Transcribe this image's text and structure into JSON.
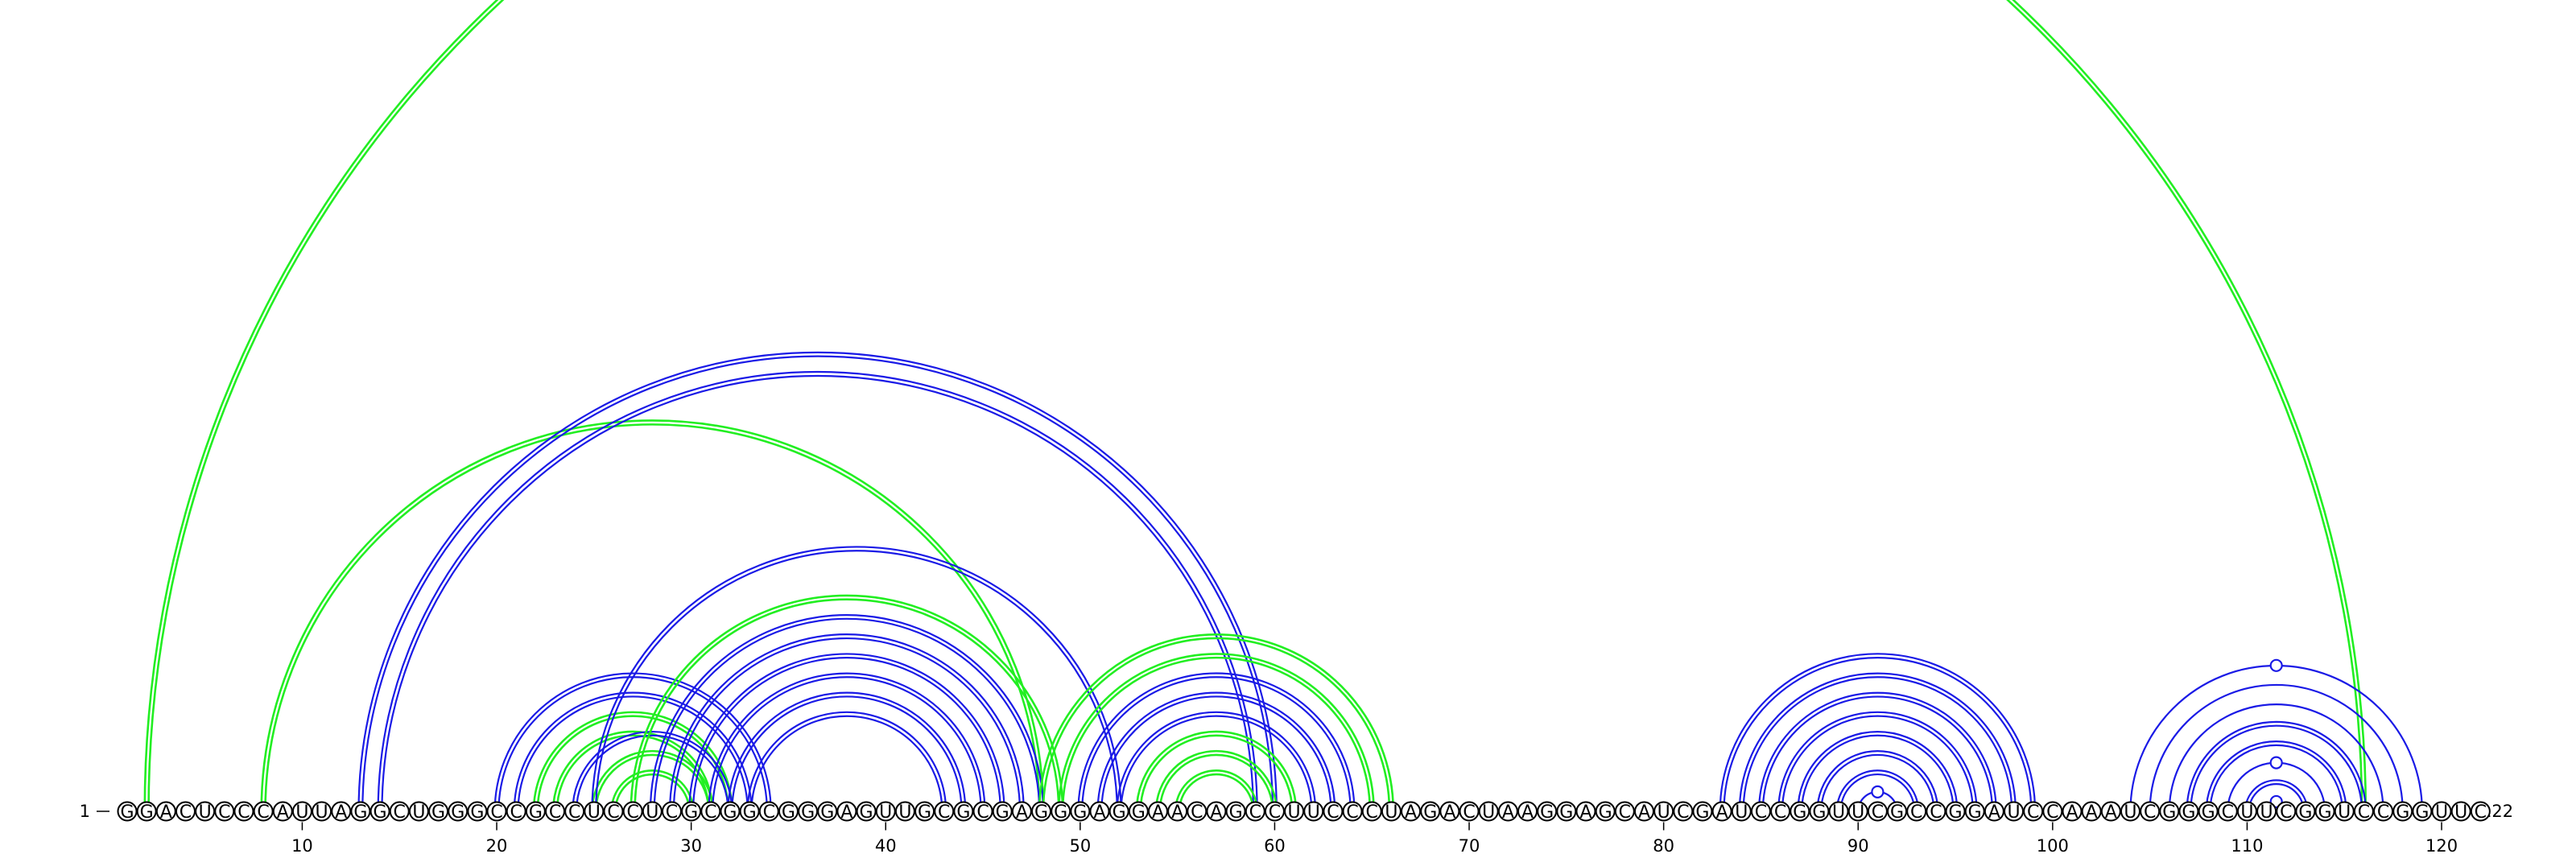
{
  "sequence": "GGACUCCCAUUAGGCUGGGCCGCCUCCUCGCGGCGGGAGUUGCGCGAGGGAGGAACAGCCUUCCCUAGACUAAGGAGCAUCGAUCCGGUUCGCCGGAUCCAAAUCGGGCUUCGGUCCGGUUC",
  "start_label": "1",
  "end_label": "122",
  "ticks": [
    {
      "pos": 10,
      "label": "10"
    },
    {
      "pos": 20,
      "label": "20"
    },
    {
      "pos": 30,
      "label": "30"
    },
    {
      "pos": 40,
      "label": "40"
    },
    {
      "pos": 50,
      "label": "50"
    },
    {
      "pos": 60,
      "label": "60"
    },
    {
      "pos": 70,
      "label": "70"
    },
    {
      "pos": 80,
      "label": "80"
    },
    {
      "pos": 90,
      "label": "90"
    },
    {
      "pos": 100,
      "label": "100"
    },
    {
      "pos": 110,
      "label": "110"
    },
    {
      "pos": 120,
      "label": "120"
    }
  ],
  "colors": {
    "blue": "#1a1ae6",
    "green": "#22ee22"
  },
  "arcs": [
    {
      "i": 2,
      "j": 116,
      "color": "green",
      "lines": 2
    },
    {
      "i": 8,
      "j": 48,
      "color": "green",
      "lines": 2
    },
    {
      "i": 13,
      "j": 60,
      "color": "blue",
      "lines": 2
    },
    {
      "i": 14,
      "j": 59,
      "color": "blue",
      "lines": 2
    },
    {
      "i": 20,
      "j": 34,
      "color": "blue",
      "lines": 2
    },
    {
      "i": 21,
      "j": 33,
      "color": "blue",
      "lines": 2
    },
    {
      "i": 22,
      "j": 32,
      "color": "green",
      "lines": 2
    },
    {
      "i": 23,
      "j": 31,
      "color": "green",
      "lines": 2
    },
    {
      "i": 24,
      "j": 32,
      "color": "blue",
      "lines": 2
    },
    {
      "i": 25,
      "j": 31,
      "color": "green",
      "lines": 2
    },
    {
      "i": 25,
      "j": 52,
      "color": "blue",
      "lines": 2
    },
    {
      "i": 26,
      "j": 30,
      "color": "green",
      "lines": 2
    },
    {
      "i": 27,
      "j": 49,
      "color": "green",
      "lines": 2
    },
    {
      "i": 28,
      "j": 48,
      "color": "blue",
      "lines": 2
    },
    {
      "i": 29,
      "j": 47,
      "color": "blue",
      "lines": 2
    },
    {
      "i": 30,
      "j": 46,
      "color": "blue",
      "lines": 2
    },
    {
      "i": 31,
      "j": 45,
      "color": "blue",
      "lines": 2
    },
    {
      "i": 32,
      "j": 44,
      "color": "blue",
      "lines": 2
    },
    {
      "i": 33,
      "j": 43,
      "color": "blue",
      "lines": 2
    },
    {
      "i": 48,
      "j": 66,
      "color": "green",
      "lines": 2
    },
    {
      "i": 49,
      "j": 65,
      "color": "green",
      "lines": 2
    },
    {
      "i": 50,
      "j": 64,
      "color": "blue",
      "lines": 2
    },
    {
      "i": 51,
      "j": 63,
      "color": "blue",
      "lines": 2
    },
    {
      "i": 52,
      "j": 62,
      "color": "blue",
      "lines": 2
    },
    {
      "i": 53,
      "j": 61,
      "color": "green",
      "lines": 2
    },
    {
      "i": 54,
      "j": 60,
      "color": "green",
      "lines": 2
    },
    {
      "i": 55,
      "j": 59,
      "color": "green",
      "lines": 2
    },
    {
      "i": 83,
      "j": 99,
      "color": "blue",
      "lines": 2
    },
    {
      "i": 84,
      "j": 98,
      "color": "blue",
      "lines": 2
    },
    {
      "i": 85,
      "j": 97,
      "color": "blue",
      "lines": 2
    },
    {
      "i": 86,
      "j": 96,
      "color": "blue",
      "lines": 2
    },
    {
      "i": 87,
      "j": 95,
      "color": "blue",
      "lines": 2
    },
    {
      "i": 88,
      "j": 94,
      "color": "blue",
      "lines": 2
    },
    {
      "i": 89,
      "j": 93,
      "color": "blue",
      "lines": 2
    },
    {
      "i": 90,
      "j": 92,
      "color": "blue",
      "lines": 1,
      "loop": true
    },
    {
      "i": 104,
      "j": 119,
      "color": "blue",
      "lines": 1,
      "loop": true
    },
    {
      "i": 105,
      "j": 118,
      "color": "blue",
      "lines": 1
    },
    {
      "i": 106,
      "j": 117,
      "color": "blue",
      "lines": 1
    },
    {
      "i": 107,
      "j": 116,
      "color": "blue",
      "lines": 2
    },
    {
      "i": 108,
      "j": 115,
      "color": "blue",
      "lines": 2
    },
    {
      "i": 109,
      "j": 114,
      "color": "blue",
      "lines": 1,
      "loop": true
    },
    {
      "i": 110,
      "j": 113,
      "color": "blue",
      "lines": 2
    },
    {
      "i": 111,
      "j": 112,
      "color": "blue",
      "lines": 1,
      "loop": true
    }
  ]
}
